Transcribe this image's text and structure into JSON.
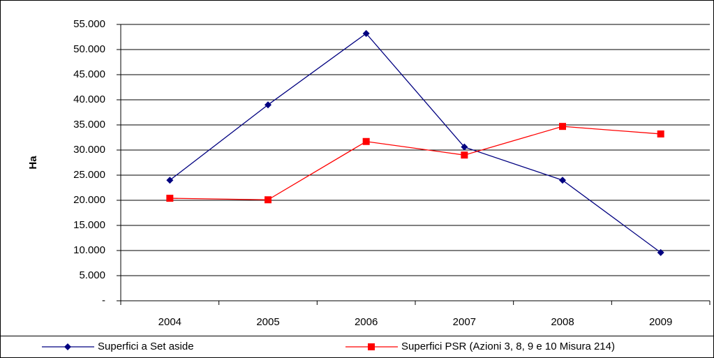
{
  "chart_data": {
    "type": "line",
    "y_label": "Ha",
    "categories": [
      "2004",
      "2005",
      "2006",
      "2007",
      "2008",
      "2009"
    ],
    "series": [
      {
        "name": "Superfici a Set aside",
        "color": "#000080",
        "marker": "diamond",
        "values": [
          24000,
          39000,
          53200,
          30600,
          24000,
          9600
        ]
      },
      {
        "name": "Superfici PSR (Azioni 3, 8, 9 e 10 Misura 214)",
        "color": "#ff0000",
        "marker": "square",
        "values": [
          20400,
          20100,
          31700,
          29000,
          34700,
          33200
        ]
      }
    ],
    "ylim": [
      0,
      55000
    ],
    "yticks": [
      {
        "value": 0,
        "label": "-"
      },
      {
        "value": 5000,
        "label": "5.000"
      },
      {
        "value": 10000,
        "label": "10.000"
      },
      {
        "value": 15000,
        "label": "15.000"
      },
      {
        "value": 20000,
        "label": "20.000"
      },
      {
        "value": 25000,
        "label": "25.000"
      },
      {
        "value": 30000,
        "label": "30.000"
      },
      {
        "value": 35000,
        "label": "35.000"
      },
      {
        "value": 40000,
        "label": "40.000"
      },
      {
        "value": 45000,
        "label": "45.000"
      },
      {
        "value": 50000,
        "label": "50.000"
      },
      {
        "value": 55000,
        "label": "55.000"
      }
    ],
    "grid": true,
    "legend": "bottom"
  }
}
